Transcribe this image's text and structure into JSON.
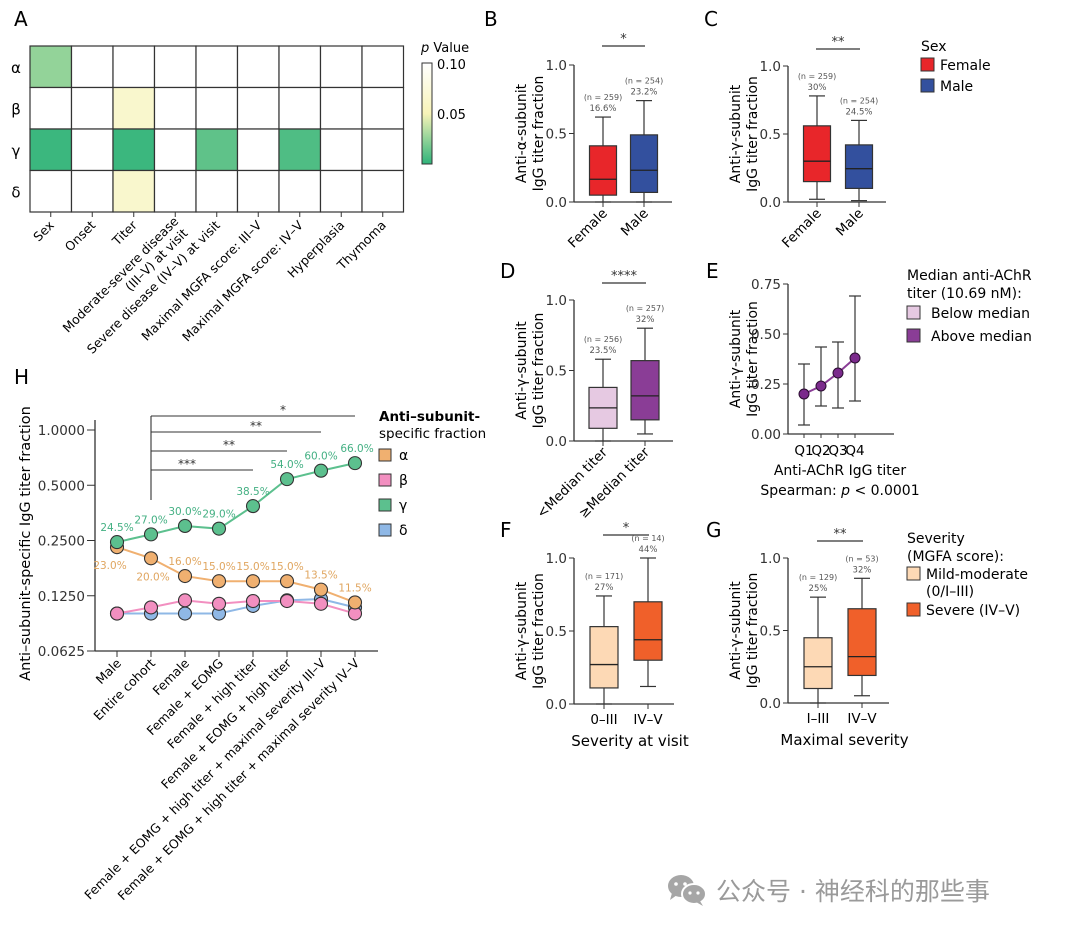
{
  "chart_data": [
    {
      "panel": "A",
      "type": "heatmap",
      "rows": [
        "α",
        "β",
        "γ",
        "δ"
      ],
      "columns": [
        "Sex",
        "Onset",
        "Titer",
        "Moderate-severe disease\n(III–V) at visit",
        "Severe disease (IV–V) at visit",
        "Maximal MGFA score: III–V",
        "Maximal MGFA score: IV–V",
        "Hyperplasia",
        "Thymoma"
      ],
      "p_values": [
        [
          0.025,
          null,
          null,
          null,
          null,
          null,
          null,
          null,
          null
        ],
        [
          null,
          null,
          0.065,
          null,
          null,
          null,
          null,
          null,
          null
        ],
        [
          0.003,
          null,
          0.003,
          null,
          0.012,
          null,
          0.008,
          null,
          null
        ],
        [
          null,
          null,
          0.065,
          null,
          null,
          null,
          null,
          null,
          null
        ]
      ],
      "colorbar": {
        "title_italic": "p",
        "title": " Value",
        "ticks": [
          "0.10",
          "0.05"
        ],
        "range": [
          0,
          0.1
        ],
        "colors": [
          "#2fb37a",
          "#f7f3b8",
          "#ffffff"
        ]
      }
    },
    {
      "panel": "B",
      "type": "box",
      "ylabel_line1": "Anti-α-subunit",
      "ylabel_line2": "IgG titer fraction",
      "ylim": [
        0,
        1.0
      ],
      "yticks": [
        "0.0",
        "0.5",
        "1.0"
      ],
      "significance": "*",
      "categories": [
        "Female",
        "Male"
      ],
      "boxes": [
        {
          "label": "Female",
          "n": "(n = 259)",
          "median_label": "16.6%",
          "min": 0.0,
          "q1": 0.05,
          "median": 0.166,
          "q3": 0.41,
          "max": 0.62,
          "color": "#e8262a"
        },
        {
          "label": "Male",
          "n": "(n = 254)",
          "median_label": "23.2%",
          "min": 0.0,
          "q1": 0.07,
          "median": 0.232,
          "q3": 0.49,
          "max": 0.74,
          "color": "#33509e"
        }
      ]
    },
    {
      "panel": "C",
      "type": "box",
      "ylabel_line1": "Anti-γ-subunit",
      "ylabel_line2": "IgG titer fraction",
      "ylim": [
        0,
        1.0
      ],
      "yticks": [
        "0.0",
        "0.5",
        "1.0"
      ],
      "significance": "**",
      "categories": [
        "Female",
        "Male"
      ],
      "boxes": [
        {
          "label": "Female",
          "n": "(n = 259)",
          "median_label": "30%",
          "min": 0.02,
          "q1": 0.15,
          "median": 0.3,
          "q3": 0.56,
          "max": 0.78,
          "color": "#e8262a"
        },
        {
          "label": "Male",
          "n": "(n = 254)",
          "median_label": "24.5%",
          "min": 0.01,
          "q1": 0.1,
          "median": 0.245,
          "q3": 0.42,
          "max": 0.6,
          "color": "#33509e"
        }
      ],
      "legend": {
        "title": "Sex",
        "items": [
          {
            "label": "Female",
            "color": "#e8262a"
          },
          {
            "label": "Male",
            "color": "#33509e"
          }
        ]
      }
    },
    {
      "panel": "D",
      "type": "box",
      "ylabel_line1": "Anti-γ-subunit",
      "ylabel_line2": "IgG titer fraction",
      "ylim": [
        0,
        1.0
      ],
      "yticks": [
        "0.0",
        "0.5",
        "1.0"
      ],
      "significance": "****",
      "categories": [
        "<Median titer",
        "≥Median titer"
      ],
      "boxes": [
        {
          "label": "<Median titer",
          "n": "(n = 256)",
          "median_label": "23.5%",
          "min": 0.0,
          "q1": 0.09,
          "median": 0.235,
          "q3": 0.38,
          "max": 0.58,
          "color": "#e6c9e2"
        },
        {
          "label": "≥Median titer",
          "n": "(n = 257)",
          "median_label": "32%",
          "min": 0.05,
          "q1": 0.15,
          "median": 0.32,
          "q3": 0.57,
          "max": 0.8,
          "color": "#8a3d96"
        }
      ]
    },
    {
      "panel": "E",
      "type": "line",
      "ylabel_line1": "Anti-γ-subunit",
      "ylabel_line2": "IgG titer fraction",
      "xlabel": "Anti-AChR IgG titer",
      "subtitle_prefix": "Spearman: ",
      "subtitle_italic": "p",
      "subtitle_suffix": " < 0.0001",
      "ylim": [
        0,
        0.75
      ],
      "yticks": [
        "0.00",
        "0.25",
        "0.50",
        "0.75"
      ],
      "categories": [
        "Q1",
        "Q2",
        "Q3",
        "Q4"
      ],
      "values": [
        0.2,
        0.24,
        0.305,
        0.38
      ],
      "err_low": [
        0.045,
        0.14,
        0.13,
        0.165
      ],
      "err_high": [
        0.35,
        0.435,
        0.46,
        0.69
      ],
      "color": "#7b2a8c",
      "legend": {
        "title_line1": "Median anti-AChR",
        "title_line2": "titer (10.69 nM):",
        "items": [
          {
            "label": "Below median",
            "color": "#e6c9e2"
          },
          {
            "label": "Above median",
            "color": "#8a3d96"
          }
        ]
      }
    },
    {
      "panel": "F",
      "type": "box",
      "ylabel_line1": "Anti-γ-subunit",
      "ylabel_line2": "IgG titer fraction",
      "xlabel": "Severity at visit",
      "ylim": [
        0,
        1.0
      ],
      "yticks": [
        "0.0",
        "0.5",
        "1.0"
      ],
      "significance": "*",
      "categories": [
        "0–III",
        "IV–V"
      ],
      "boxes": [
        {
          "label": "0–III",
          "n": "(n = 171)",
          "median_label": "27%",
          "min": 0.0,
          "q1": 0.11,
          "median": 0.27,
          "q3": 0.53,
          "max": 0.74,
          "color": "#fdd9b5"
        },
        {
          "label": "IV–V",
          "n": "(n = 14)",
          "median_label": "44%",
          "min": 0.12,
          "q1": 0.3,
          "median": 0.44,
          "q3": 0.7,
          "max": 1.0,
          "color": "#f0602a"
        }
      ]
    },
    {
      "panel": "G",
      "type": "box",
      "ylabel_line1": "Anti-γ-subunit",
      "ylabel_line2": "IgG titer fraction",
      "xlabel": "Maximal severity",
      "ylim": [
        0,
        1.0
      ],
      "yticks": [
        "0.0",
        "0.5",
        "1.0"
      ],
      "significance": "**",
      "categories": [
        "I–III",
        "IV–V"
      ],
      "boxes": [
        {
          "label": "I–III",
          "n": "(n = 129)",
          "median_label": "25%",
          "min": 0.0,
          "q1": 0.1,
          "median": 0.25,
          "q3": 0.45,
          "max": 0.73,
          "color": "#fdd9b5"
        },
        {
          "label": "IV–V",
          "n": "(n = 53)",
          "median_label": "32%",
          "min": 0.05,
          "q1": 0.19,
          "median": 0.32,
          "q3": 0.65,
          "max": 0.86,
          "color": "#f0602a"
        }
      ],
      "legend": {
        "title_line1": "Severity",
        "title_line2": "(MGFA score):",
        "items": [
          {
            "label": "Mild-moderate",
            "label2": "(0/I–III)",
            "color": "#fdd9b5"
          },
          {
            "label": "Severe (IV–V)",
            "label2": "",
            "color": "#f0602a"
          }
        ]
      }
    },
    {
      "panel": "H",
      "type": "line",
      "ylabel": "Anti–subunit-specific IgG titer fraction",
      "yscale": "log2",
      "ylim": [
        0.0625,
        1.0
      ],
      "yticks": [
        "0.0625",
        "0.1250",
        "0.2500",
        "0.5000",
        "1.0000"
      ],
      "ytick_values": [
        0.0625,
        0.125,
        0.25,
        0.5,
        1.0
      ],
      "categories": [
        "Male",
        "Entire cohort",
        "Female",
        "Female + EOMG",
        "Female + high titer",
        "Female + EOMG + high titer",
        "Female + EOMG + high titer + maximal severity III–V",
        "Female + EOMG + high titer + maximal severity IV–V"
      ],
      "series": [
        {
          "name": "α",
          "color": "#f0b070",
          "label_color": "#e0a660",
          "values": [
            0.23,
            0.2,
            0.16,
            0.15,
            0.15,
            0.15,
            0.135,
            0.115
          ],
          "labels": [
            "23.0%",
            "20.0%",
            "16.0%",
            "15.0%",
            "15.0%",
            "15.0%",
            "13.5%",
            "11.5%"
          ]
        },
        {
          "name": "β",
          "color": "#f28fc0",
          "values": [
            0.1,
            0.108,
            0.118,
            0.113,
            0.117,
            0.117,
            0.113,
            0.1
          ]
        },
        {
          "name": "γ",
          "color": "#5cc08e",
          "label_color": "#44b083",
          "values": [
            0.245,
            0.27,
            0.3,
            0.29,
            0.385,
            0.54,
            0.6,
            0.66
          ],
          "labels": [
            "24.5%",
            "27.0%",
            "30.0%",
            "29.0%",
            "38.5%",
            "54.0%",
            "60.0%",
            "66.0%"
          ]
        },
        {
          "name": "δ",
          "color": "#8fb8e6",
          "values": [
            0.1,
            0.1,
            0.1,
            0.1,
            0.11,
            0.118,
            0.12,
            0.108
          ]
        }
      ],
      "brackets": [
        {
          "from": 1,
          "to": 7,
          "label": "*"
        },
        {
          "from": 1,
          "to": 6,
          "label": "**"
        },
        {
          "from": 1,
          "to": 5,
          "label": "**"
        },
        {
          "from": 1,
          "to": 4,
          "label": "***"
        }
      ],
      "legend": {
        "title_line1": "Anti–subunit-",
        "title_line2": "specific fraction"
      }
    }
  ],
  "watermark": {
    "text": "公众号 · 神经科的那些事"
  }
}
